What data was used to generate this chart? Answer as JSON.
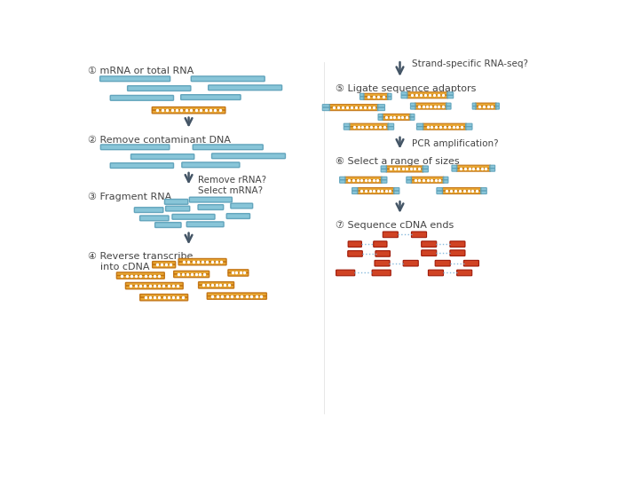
{
  "background_color": "#ffffff",
  "text_color": "#444444",
  "rna_color": "#7BBFD4",
  "rna_edge_color": "#5A9FB8",
  "dna_color": "#E8A020",
  "dna_edge_color": "#C07010",
  "dna_dot_color": "#ffffff",
  "adaptor_color": "#7BBFD4",
  "adaptor_edge_color": "#5A9FB8",
  "seq_color": "#CC3311",
  "seq_edge_color": "#991100",
  "seq_dot_color": "#88BBDD",
  "arrow_color": "#445566",
  "step1_label": "① mRNA or total RNA",
  "step2_label": "② Remove contaminant DNA",
  "step3_label": "③ Fragment RNA",
  "step4_label": "④ Reverse transcribe\n    into cDNA",
  "step5_label": "⑤ Ligate sequence adaptors",
  "step6_label": "⑥ Select a range of sizes",
  "step7_label": "⑦ Sequence cDNA ends",
  "note1": "Remove rRNA?\nSelect mRNA?",
  "note2": "Strand-specific RNA-seq?",
  "note3": "PCR amplification?"
}
